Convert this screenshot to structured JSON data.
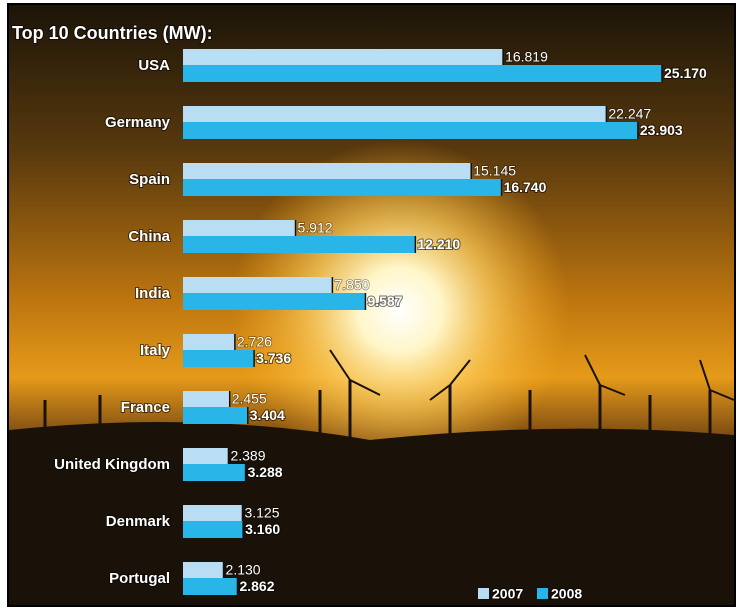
{
  "chart_data": {
    "type": "bar",
    "orientation": "horizontal",
    "title": "Top 10 Countries (MW):",
    "categories": [
      "USA",
      "Germany",
      "Spain",
      "China",
      "India",
      "Italy",
      "France",
      "United Kingdom",
      "Denmark",
      "Portugal"
    ],
    "series": [
      {
        "name": "2007",
        "color": "#b9ddf3",
        "values": [
          16819,
          22247,
          15145,
          5912,
          7850,
          2726,
          2455,
          2389,
          3125,
          2130
        ],
        "value_labels": [
          "16.819",
          "22.247",
          "15.145",
          "5.912",
          "7.850",
          "2.726",
          "2.455",
          "2.389",
          "3.125",
          "2.130"
        ]
      },
      {
        "name": "2008",
        "color": "#29b5e8",
        "values": [
          25170,
          23903,
          16740,
          12210,
          9587,
          3736,
          3404,
          3288,
          3160,
          2862
        ],
        "value_labels": [
          "25.170",
          "23.903",
          "16.740",
          "12.210",
          "9.587",
          "3.736",
          "3.404",
          "3.288",
          "3.160",
          "2.862"
        ]
      }
    ],
    "legend": "bottom-right"
  }
}
